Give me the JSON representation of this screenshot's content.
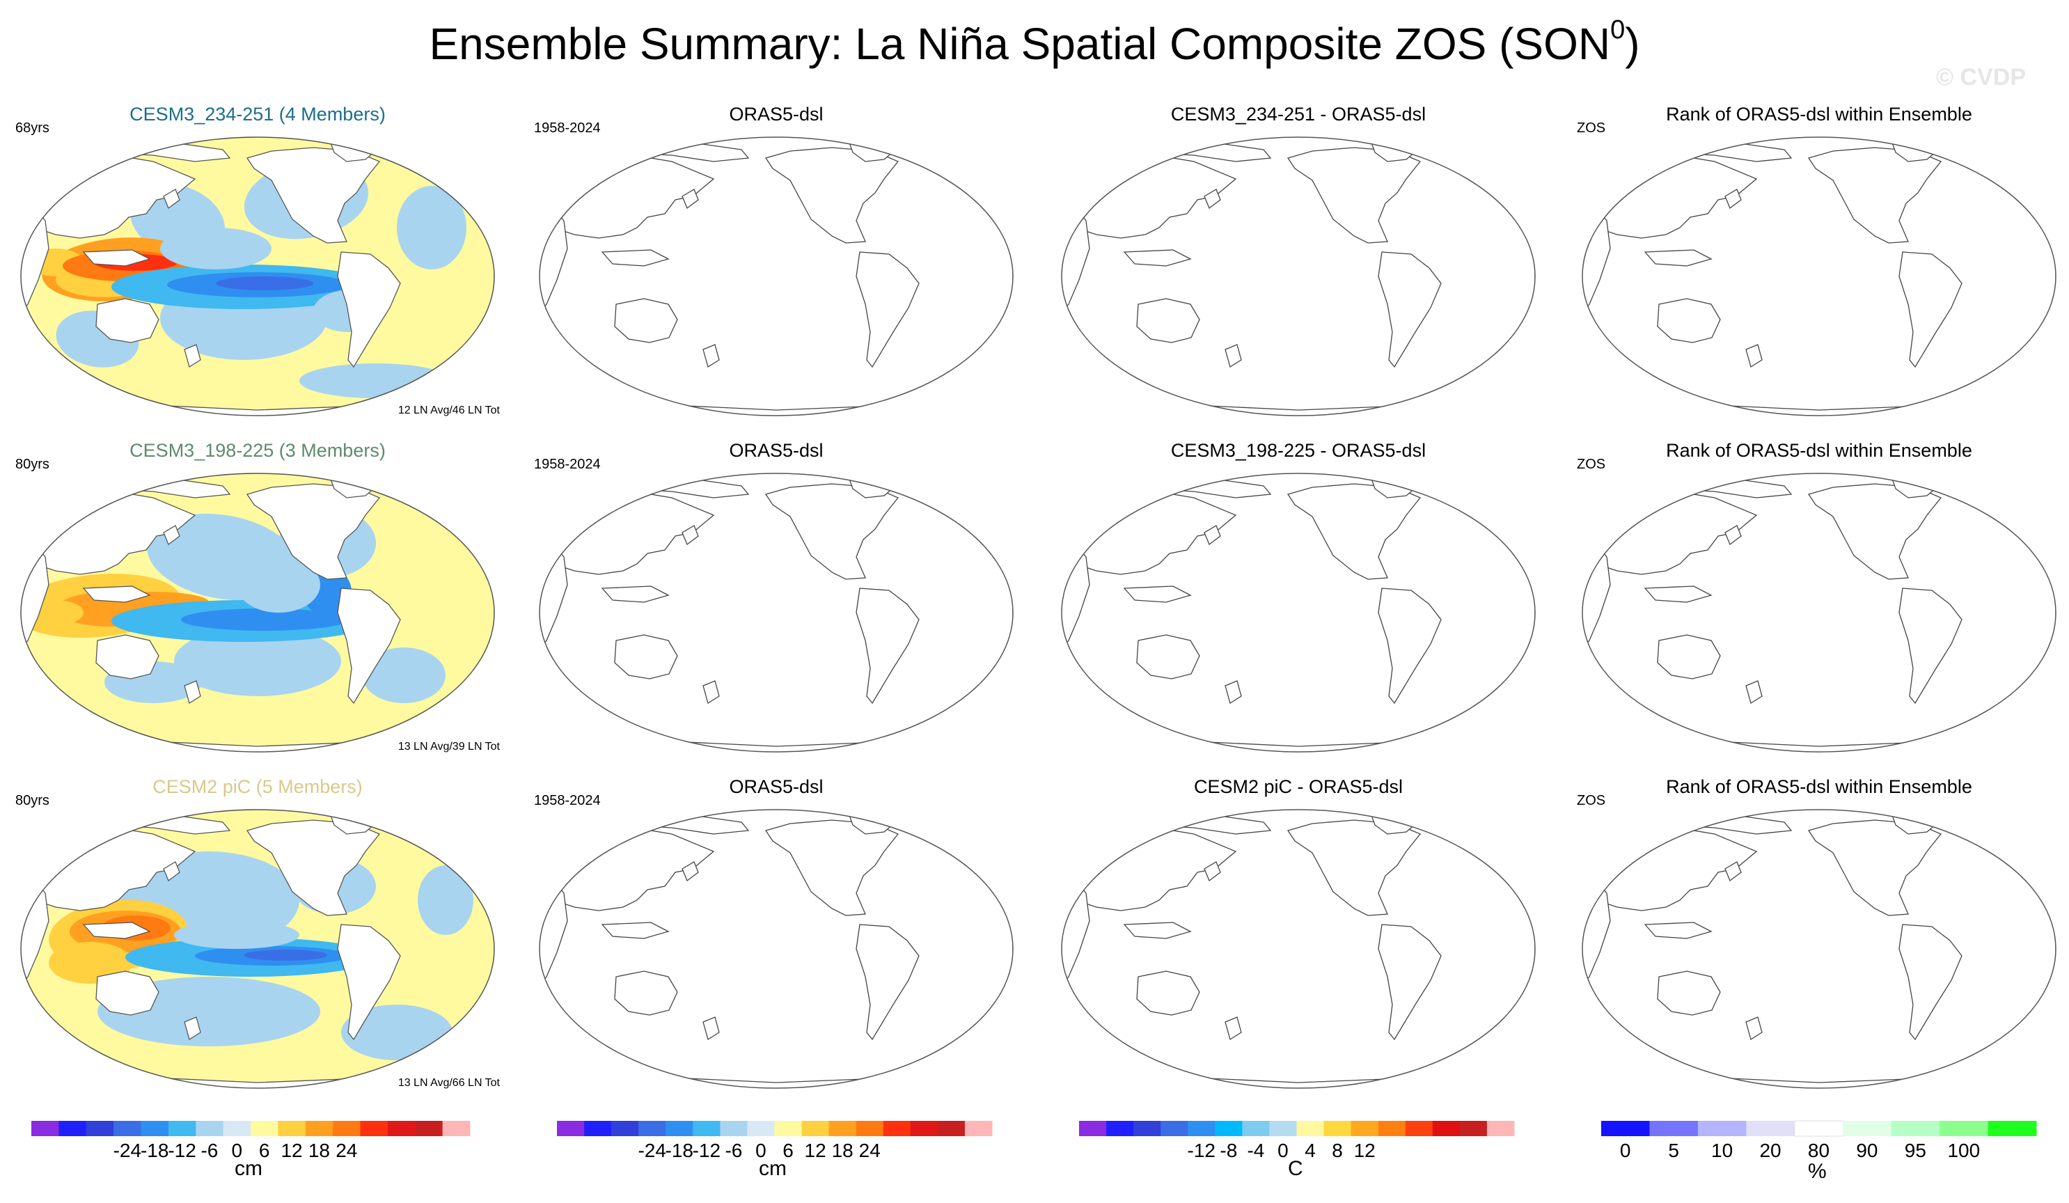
{
  "figure": {
    "title_text": "Ensemble Summary: La Niña Spatial Composite ZOS (SON",
    "title_sup": "0",
    "title_close": ")",
    "copyright": "© CVDP"
  },
  "colors": {
    "ensemble_title_1": "#1a6e8c",
    "ensemble_title_2": "#5e8a6a",
    "ensemble_title_3": "#d9c98a",
    "cm_scale": [
      "#8b2be2",
      "#2020ff",
      "#3040d8",
      "#3a6ee6",
      "#2f8ff0",
      "#40b8f0",
      "#a8d4f0",
      "#d8e8f5",
      "#fffaa0",
      "#ffd040",
      "#ffa020",
      "#ff7a10",
      "#ff3010",
      "#e01818",
      "#c82020",
      "#ffb6b6"
    ],
    "c_scale": [
      "#8b2be2",
      "#2020ff",
      "#3040d8",
      "#3a6ee6",
      "#2f8ff0",
      "#00b8ff",
      "#7ecbf0",
      "#b4dcf0",
      "#fff8a0",
      "#ffd840",
      "#ffa820",
      "#ff8010",
      "#ff4010",
      "#e01010",
      "#c82020",
      "#ffb6b6"
    ],
    "pct_scale": [
      "#1414ff",
      "#7474ff",
      "#b4b4ff",
      "#e0e0f8",
      "#ffffff",
      "#e0ffe6",
      "#b4ffc4",
      "#8cff8c",
      "#1eff1e"
    ]
  },
  "rows": [
    {
      "ensemble": {
        "title": "CESM3_234-251 (4 Members)",
        "years": "68yrs",
        "count": "12 LN Avg/46 LN Tot"
      },
      "obs": {
        "title": "ORAS5-dsl",
        "years": "1958-2024"
      },
      "diff": {
        "title": "CESM3_234-251 - ORAS5-dsl"
      },
      "rank": {
        "title": "Rank of ORAS5-dsl within Ensemble",
        "var": "ZOS"
      }
    },
    {
      "ensemble": {
        "title": "CESM3_198-225 (3 Members)",
        "years": "80yrs",
        "count": "13 LN Avg/39 LN Tot"
      },
      "obs": {
        "title": "ORAS5-dsl",
        "years": "1958-2024"
      },
      "diff": {
        "title": "CESM3_198-225 - ORAS5-dsl"
      },
      "rank": {
        "title": "Rank of ORAS5-dsl within Ensemble",
        "var": "ZOS"
      }
    },
    {
      "ensemble": {
        "title": "CESM2 piC (5 Members)",
        "years": "80yrs",
        "count": "13 LN Avg/66 LN Tot"
      },
      "obs": {
        "title": "ORAS5-dsl",
        "years": "1958-2024"
      },
      "diff": {
        "title": "CESM2 piC - ORAS5-dsl"
      },
      "rank": {
        "title": "Rank of ORAS5-dsl within Ensemble",
        "var": "ZOS"
      }
    }
  ],
  "colorbars": [
    {
      "unit": "cm",
      "ticks": [
        "-24",
        "-18",
        "-12",
        "-6",
        "0",
        "6",
        "12",
        "18",
        "24"
      ]
    },
    {
      "unit": "cm",
      "ticks": [
        "-24",
        "-18",
        "-12",
        "-6",
        "0",
        "6",
        "12",
        "18",
        "24"
      ]
    },
    {
      "unit": "C",
      "ticks": [
        "-12",
        "-8",
        "-4",
        "0",
        "4",
        "8",
        "12"
      ]
    },
    {
      "unit": "%",
      "ticks": [
        "0",
        "5",
        "10",
        "20",
        "80",
        "90",
        "95",
        "100"
      ]
    }
  ],
  "chart_data": {
    "type": "heatmap",
    "projection": "Robinson (Pacific-centered)",
    "variable": "ZOS",
    "season": "SON0",
    "panels_with_data": [
      "CESM3_234-251 (4 Members)",
      "CESM3_198-225 (3 Members)",
      "CESM2 piC (5 Members)"
    ],
    "panels_blank": [
      "ORAS5-dsl",
      "difference",
      "rank"
    ],
    "pattern": "negative (blue) anomalies in central/eastern equatorial Pacific reaching about -24 cm; positive (orange) anomalies in western Pacific warm pool about +12 to +18 cm"
  }
}
